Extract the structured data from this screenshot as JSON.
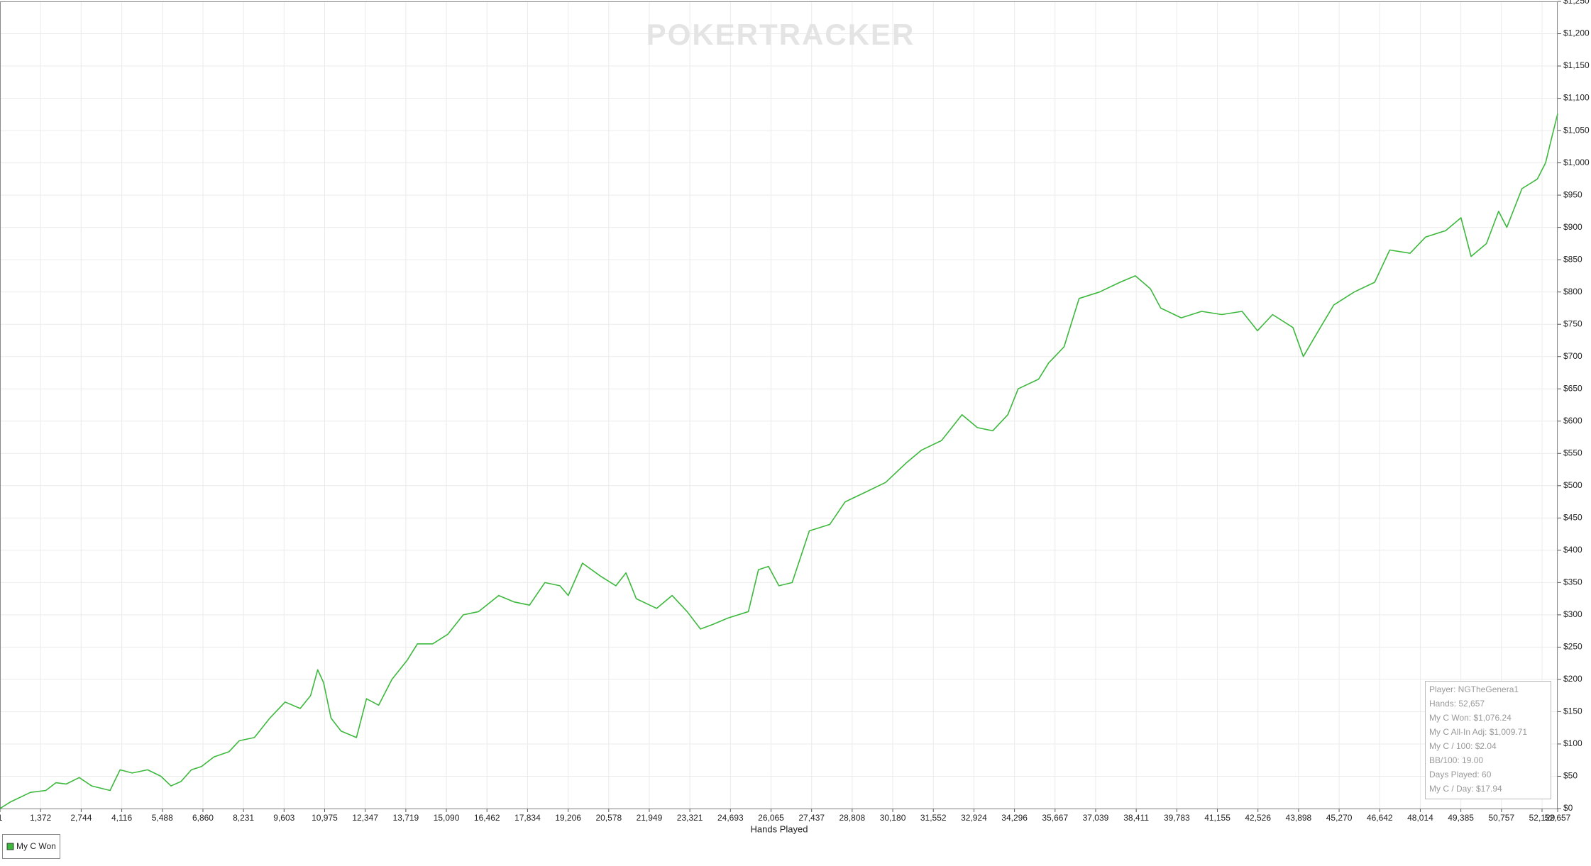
{
  "chart_data": {
    "type": "line",
    "watermark": "POKERTRACKER",
    "x_label": "Hands Played",
    "x": [
      0,
      344,
      1032,
      1550,
      1890,
      2240,
      2680,
      3100,
      3720,
      4060,
      4470,
      4990,
      5440,
      5780,
      6120,
      6470,
      6810,
      7230,
      7740,
      8090,
      8600,
      9120,
      9640,
      10150,
      10500,
      10740,
      10940,
      11190,
      11530,
      12050,
      12390,
      12800,
      13250,
      13770,
      14110,
      14630,
      15140,
      15660,
      16180,
      16860,
      17380,
      17900,
      18420,
      18930,
      19210,
      19690,
      20300,
      20820,
      21160,
      21510,
      22200,
      22720,
      23230,
      23680,
      24090,
      24610,
      25300,
      25640,
      25980,
      26330,
      26780,
      27360,
      28050,
      28570,
      29260,
      29940,
      30630,
      31150,
      31830,
      32520,
      33040,
      33560,
      34070,
      34420,
      35110,
      35450,
      35970,
      36480,
      37170,
      37860,
      38380,
      38890,
      39240,
      39930,
      40620,
      41300,
      41990,
      42510,
      43020,
      43710,
      44060,
      44570,
      45090,
      45780,
      46470,
      46980,
      47670,
      48190,
      48870,
      49390,
      49730,
      50250,
      50660,
      50940,
      51450,
      51970,
      52250,
      52490,
      52657
    ],
    "series": [
      {
        "name": "My C Won",
        "color": "#3cb83c",
        "values": [
          0,
          10,
          25,
          28,
          40,
          38,
          48,
          35,
          28,
          60,
          55,
          60,
          50,
          35,
          42,
          60,
          65,
          80,
          88,
          105,
          110,
          140,
          165,
          155,
          175,
          215,
          195,
          140,
          120,
          110,
          170,
          160,
          200,
          230,
          255,
          255,
          270,
          300,
          305,
          330,
          320,
          315,
          350,
          345,
          330,
          380,
          360,
          345,
          365,
          325,
          310,
          330,
          305,
          278,
          285,
          295,
          305,
          370,
          375,
          345,
          350,
          430,
          440,
          475,
          490,
          505,
          535,
          555,
          570,
          610,
          590,
          585,
          610,
          650,
          665,
          690,
          715,
          790,
          800,
          815,
          825,
          805,
          775,
          760,
          770,
          765,
          770,
          740,
          765,
          745,
          700,
          740,
          780,
          800,
          815,
          865,
          860,
          885,
          895,
          915,
          855,
          875,
          925,
          900,
          960,
          975,
          1000,
          1045,
          1076
        ]
      }
    ],
    "xlim": [
      0,
      52657
    ],
    "xticks": [
      1,
      {
        "value": 1372,
        "label": "1,372"
      },
      {
        "value": 2744,
        "label": "2,744"
      },
      {
        "value": 4116,
        "label": "4,116"
      },
      {
        "value": 5488,
        "label": "5,488"
      },
      {
        "value": 6860,
        "label": "6,860"
      },
      {
        "value": 8231,
        "label": "8,231"
      },
      {
        "value": 9603,
        "label": "9,603"
      },
      {
        "value": 10975,
        "label": "10,975"
      },
      {
        "value": 12347,
        "label": "12,347"
      },
      {
        "value": 13719,
        "label": "13,719"
      },
      {
        "value": 15090,
        "label": "15,090"
      },
      {
        "value": 16462,
        "label": "16,462"
      },
      {
        "value": 17834,
        "label": "17,834"
      },
      {
        "value": 19206,
        "label": "19,206"
      },
      {
        "value": 20578,
        "label": "20,578"
      },
      {
        "value": 21949,
        "label": "21,949"
      },
      {
        "value": 23321,
        "label": "23,321"
      },
      {
        "value": 24693,
        "label": "24,693"
      },
      {
        "value": 26065,
        "label": "26,065"
      },
      {
        "value": 27437,
        "label": "27,437"
      },
      {
        "value": 28808,
        "label": "28,808"
      },
      {
        "value": 30180,
        "label": "30,180"
      },
      {
        "value": 31552,
        "label": "31,552"
      },
      {
        "value": 32924,
        "label": "32,924"
      },
      {
        "value": 34296,
        "label": "34,296"
      },
      {
        "value": 35667,
        "label": "35,667"
      },
      {
        "value": 37039,
        "label": "37,039"
      },
      {
        "value": 38411,
        "label": "38,411"
      },
      {
        "value": 39783,
        "label": "39,783"
      },
      {
        "value": 41155,
        "label": "41,155"
      },
      {
        "value": 42526,
        "label": "42,526"
      },
      {
        "value": 43898,
        "label": "43,898"
      },
      {
        "value": 45270,
        "label": "45,270"
      },
      {
        "value": 46642,
        "label": "46,642"
      },
      {
        "value": 48014,
        "label": "48,014"
      },
      {
        "value": 49385,
        "label": "49,385"
      },
      {
        "value": 50757,
        "label": "50,757"
      },
      {
        "value": 52129,
        "label": "52,129"
      },
      {
        "value": 52657,
        "label": "52,657"
      }
    ],
    "ylim": [
      0,
      1250
    ],
    "yticks": [
      {
        "value": 0,
        "label": "$0"
      },
      {
        "value": 50,
        "label": "$50"
      },
      {
        "value": 100,
        "label": "$100"
      },
      {
        "value": 150,
        "label": "$150"
      },
      {
        "value": 200,
        "label": "$200"
      },
      {
        "value": 250,
        "label": "$250"
      },
      {
        "value": 300,
        "label": "$300"
      },
      {
        "value": 350,
        "label": "$350"
      },
      {
        "value": 400,
        "label": "$400"
      },
      {
        "value": 450,
        "label": "$450"
      },
      {
        "value": 500,
        "label": "$500"
      },
      {
        "value": 550,
        "label": "$550"
      },
      {
        "value": 600,
        "label": "$600"
      },
      {
        "value": 650,
        "label": "$650"
      },
      {
        "value": 700,
        "label": "$700"
      },
      {
        "value": 750,
        "label": "$750"
      },
      {
        "value": 800,
        "label": "$800"
      },
      {
        "value": 850,
        "label": "$850"
      },
      {
        "value": 900,
        "label": "$900"
      },
      {
        "value": 950,
        "label": "$950"
      },
      {
        "value": 1000,
        "label": "$1,000"
      },
      {
        "value": 1050,
        "label": "$1,050"
      },
      {
        "value": 1100,
        "label": "$1,100"
      },
      {
        "value": 1150,
        "label": "$1,150"
      },
      {
        "value": 1200,
        "label": "$1,200"
      },
      {
        "value": 1250,
        "label": "$1,250"
      }
    ],
    "grid": true,
    "info_box": [
      "Player: NGTheGenera1",
      "Hands: 52,657",
      "My C Won: $1,076.24",
      "My C All-In Adj: $1,009.71",
      "My C / 100: $2.04",
      "BB/100: 19.00",
      "Days Played: 60",
      "My C / Day: $17.94"
    ]
  }
}
